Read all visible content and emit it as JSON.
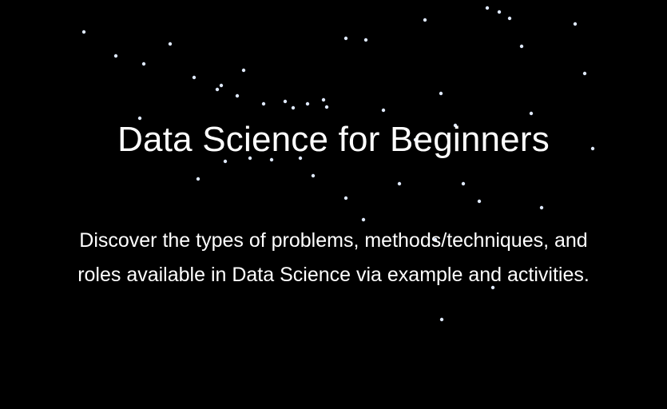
{
  "banner": {
    "title": "Data Science for Beginners",
    "subtitle_line1": "Discover the types of problems, methods/techniques, and",
    "subtitle_line2": "roles available in Data Science via example and activities."
  },
  "colors": {
    "background": "#000000",
    "text": "#ffffff",
    "line_accent": "#2f6fd6"
  },
  "background_graphic": "vertical-light-lines"
}
